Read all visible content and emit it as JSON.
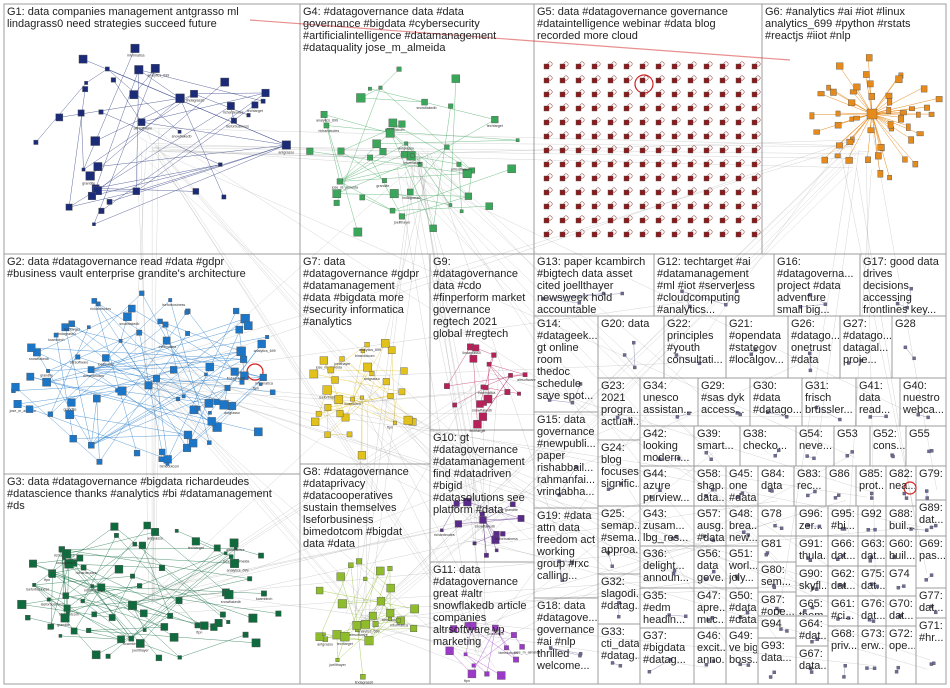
{
  "colors": {
    "G1": "#1c2b78",
    "G2": "#1c76c8",
    "G3": "#0f6b3e",
    "G4": "#3aa65a",
    "G5": "#8c1a1a",
    "G6": "#e68a1c",
    "G7": "#e2c21a",
    "G8": "#8fbc2a",
    "G9": "#b8205a",
    "G10": "#5a2a8a",
    "G11": "#9c3ac8",
    "small": "#6b6b9c",
    "edge": "#8a8a8a",
    "highlight": "#d42020"
  },
  "groups": [
    {
      "id": "g1",
      "lines": [
        "G1: data companies management antgrasso ml",
        "lindagrass0 need strategies succeed future"
      ],
      "color": "G1",
      "layout": "cluster",
      "nodes": 40
    },
    {
      "id": "g2",
      "lines": [
        "G2: data #datagovernance read #data #gdpr",
        "#business vault enterprise grandite's architecture"
      ],
      "color": "G2",
      "layout": "cluster",
      "nodes": 80
    },
    {
      "id": "g3",
      "lines": [
        "G3: data #datagovernance #bigdata richardeudes",
        "#datascience thanks #analytics #bi #datamanagement",
        "#ds"
      ],
      "color": "G3",
      "layout": "cluster",
      "nodes": 75
    },
    {
      "id": "g4",
      "lines": [
        "G4: #datagovernance data #data",
        "governance #bigdata #cybersecurity",
        "#artificialintelligence #datamanagement",
        "#dataquality jose_m_almeida"
      ],
      "color": "G4",
      "layout": "cluster",
      "nodes": 45
    },
    {
      "id": "g5",
      "lines": [
        "G5: data #datagovernance governance",
        "#dataintelligence webinar #data blog",
        "recorded more cloud"
      ],
      "color": "G5",
      "layout": "grid",
      "nodes": 0
    },
    {
      "id": "g6",
      "lines": [
        "G6: #analytics #ai #iot #linux",
        "analytics_699 #python #rstats",
        "#reactjs #iiot #nlp"
      ],
      "color": "G6",
      "layout": "star",
      "nodes": 50
    },
    {
      "id": "g7",
      "lines": [
        "G7: data",
        "#datagovernance #gdpr",
        "#datamanagement",
        "#data #bigdata more",
        "#security informatica",
        "#analytics"
      ],
      "color": "G7",
      "layout": "cluster",
      "nodes": 30
    },
    {
      "id": "g8",
      "lines": [
        "G8: #datagovernance",
        "#dataprivacy",
        "#datacooperatives",
        "sustain themselves",
        "lseforbusiness",
        "bimedotcom #bigdat",
        "data #data"
      ],
      "color": "G8",
      "layout": "cluster",
      "nodes": 30
    },
    {
      "id": "g9",
      "lines": [
        "G9:",
        "#datagovernance",
        "data #cdo",
        "#finperform market",
        "governance",
        "regtech 2021",
        "global #regtech"
      ],
      "color": "G9",
      "layout": "cluster",
      "nodes": 18
    },
    {
      "id": "g10",
      "lines": [
        "G10: gt",
        "#datagovernance",
        "#datamanagement",
        "find #datadriven",
        "#bigid",
        "#datasolutions see",
        "platform #data"
      ],
      "color": "G10",
      "layout": "cluster",
      "nodes": 14
    },
    {
      "id": "g11",
      "lines": [
        "G11: data",
        "#datagovernance",
        "great #altr",
        "snowflakedb article",
        "companies",
        "altrsoftware vp",
        "marketing"
      ],
      "color": "G11",
      "layout": "cluster",
      "nodes": 14
    },
    {
      "id": "g12",
      "lines": [
        "G12: techtarget #ai",
        "#datamanagement",
        "#ml #iot #serverless",
        "#cloudcomputing",
        "#analytics..."
      ],
      "color": "small",
      "layout": "few",
      "nodes": 4
    },
    {
      "id": "g13",
      "lines": [
        "G13: paper kcambirch",
        "#bigtech data asset",
        "cited joellthayer",
        "newsweek hold",
        "accountable"
      ],
      "color": "small",
      "layout": "few",
      "nodes": 4
    },
    {
      "id": "g14",
      "lines": [
        "G14:",
        "#datageek...",
        "gt online",
        "room",
        "thedoc",
        "schedule",
        "save spot..."
      ],
      "color": "small",
      "layout": "few",
      "nodes": 3
    },
    {
      "id": "g15",
      "lines": [
        "G15: data",
        "governance",
        "#newpubli...",
        "paper",
        "rishabbail...",
        "rahmanfai...",
        "vrindabha..."
      ],
      "color": "small",
      "layout": "few",
      "nodes": 3
    },
    {
      "id": "g16",
      "lines": [
        "G16:",
        "#datagoverna...",
        "project #data",
        "adventure",
        "small big..."
      ],
      "color": "small",
      "layout": "few",
      "nodes": 3
    },
    {
      "id": "g17",
      "lines": [
        "G17: good data",
        "drives",
        "decisions",
        "accessing",
        "frontlines key..."
      ],
      "color": "small",
      "layout": "few",
      "nodes": 3
    },
    {
      "id": "g18",
      "lines": [
        "G18: data",
        "#datagove...",
        "governance",
        "#ai #nlp",
        "thrilled",
        "welcome..."
      ],
      "color": "small",
      "layout": "few",
      "nodes": 3
    },
    {
      "id": "g19",
      "lines": [
        "G19: #data",
        "attn data",
        "freedom act",
        "working",
        "group #rxc",
        "calling..."
      ],
      "color": "small",
      "layout": "few",
      "nodes": 3
    },
    {
      "id": "g20",
      "lines": [
        "G20: data"
      ],
      "color": "small",
      "layout": "few",
      "nodes": 3
    },
    {
      "id": "g21",
      "lines": [
        "G21:",
        "#opendata",
        "#stategov",
        "#localgov..."
      ],
      "color": "small",
      "layout": "few",
      "nodes": 2
    },
    {
      "id": "g22",
      "lines": [
        "G22:",
        "principles",
        "#youth",
        "consultati..."
      ],
      "color": "small",
      "layout": "few",
      "nodes": 2
    },
    {
      "id": "g23",
      "lines": [
        "G23:",
        "2021",
        "progra...",
        "actuali..."
      ],
      "color": "small",
      "layout": "few",
      "nodes": 2
    },
    {
      "id": "g24",
      "lines": [
        "G24:",
        "blog",
        "focuses",
        "signific..."
      ],
      "color": "small",
      "layout": "few",
      "nodes": 2
    },
    {
      "id": "g25",
      "lines": [
        "G25:",
        "semap...",
        "#sema...",
        "approa..."
      ],
      "color": "small",
      "layout": "few",
      "nodes": 2
    },
    {
      "id": "g26",
      "lines": [
        "G26:",
        "#datago...",
        "onetrust",
        "#data"
      ],
      "color": "small",
      "layout": "few",
      "nodes": 2
    },
    {
      "id": "g27",
      "lines": [
        "G27:",
        "#datago...",
        "datagal...",
        "proje..."
      ],
      "color": "small",
      "layout": "few",
      "nodes": 2
    },
    {
      "id": "g28",
      "lines": [
        "G28"
      ],
      "color": "small",
      "layout": "few",
      "nodes": 2
    },
    {
      "id": "g29",
      "lines": [
        "G29:",
        "#sas dyk",
        "access..."
      ],
      "color": "small",
      "layout": "few",
      "nodes": 2
    },
    {
      "id": "g30",
      "lines": [
        "G30:",
        "#data",
        "#datago..."
      ],
      "color": "small",
      "layout": "few",
      "nodes": 2
    },
    {
      "id": "g31",
      "lines": [
        "G31:",
        "frisch",
        "brüssler..."
      ],
      "color": "small",
      "layout": "few",
      "nodes": 2
    },
    {
      "id": "g32",
      "lines": [
        "G32:",
        "slagodi...",
        "#datag..."
      ],
      "color": "small",
      "layout": "few",
      "nodes": 2
    },
    {
      "id": "g33",
      "lines": [
        "G33:",
        "cti_data",
        "#datag..."
      ],
      "color": "small",
      "layout": "few",
      "nodes": 2
    },
    {
      "id": "g34",
      "lines": [
        "G34:",
        "unesco",
        "assistan..."
      ],
      "color": "small",
      "layout": "few",
      "nodes": 2
    },
    {
      "id": "g35",
      "lines": [
        "G35:",
        "#edm",
        "headin..."
      ],
      "color": "small",
      "layout": "few",
      "nodes": 2
    },
    {
      "id": "g36",
      "lines": [
        "G36:",
        "delight...",
        "announ..."
      ],
      "color": "small",
      "layout": "few",
      "nodes": 2
    },
    {
      "id": "g37",
      "lines": [
        "G37:",
        "#bigdata",
        "#datag..."
      ],
      "color": "small",
      "layout": "few",
      "nodes": 2
    },
    {
      "id": "g38",
      "lines": [
        "G38:",
        "checko..."
      ],
      "color": "small",
      "layout": "few",
      "nodes": 2
    },
    {
      "id": "g39",
      "lines": [
        "G39:",
        "smart..."
      ],
      "color": "small",
      "layout": "few",
      "nodes": 2
    },
    {
      "id": "g40",
      "lines": [
        "G40:",
        "nuestro",
        "webca..."
      ],
      "color": "small",
      "layout": "few",
      "nodes": 2
    },
    {
      "id": "g41",
      "lines": [
        "G41:",
        "data",
        "read..."
      ],
      "color": "small",
      "layout": "few",
      "nodes": 2
    },
    {
      "id": "g42",
      "lines": [
        "G42:",
        "looking",
        "modern..."
      ],
      "color": "small",
      "layout": "few",
      "nodes": 2
    },
    {
      "id": "g43",
      "lines": [
        "G43:",
        "zusam...",
        "lbg_res..."
      ],
      "color": "small",
      "layout": "few",
      "nodes": 2
    },
    {
      "id": "g44",
      "lines": [
        "G44:",
        "azure",
        "purview..."
      ],
      "color": "small",
      "layout": "few",
      "nodes": 2
    },
    {
      "id": "g45",
      "lines": [
        "G45:",
        "one",
        "#data"
      ],
      "color": "small",
      "layout": "few",
      "nodes": 2
    },
    {
      "id": "g46",
      "lines": [
        "G46:",
        "excit...",
        "anno..."
      ],
      "color": "small",
      "layout": "few",
      "nodes": 2
    },
    {
      "id": "g47",
      "lines": [
        "G47:",
        "apre...",
        "muc..."
      ],
      "color": "small",
      "layout": "few",
      "nodes": 2
    },
    {
      "id": "g48",
      "lines": [
        "G48:",
        "brea...",
        "new..."
      ],
      "color": "small",
      "layout": "few",
      "nodes": 2
    },
    {
      "id": "g49",
      "lines": [
        "G49:",
        "ve big",
        "boss..."
      ],
      "color": "small",
      "layout": "few",
      "nodes": 2
    },
    {
      "id": "g50",
      "lines": [
        "G50:",
        "#data",
        "#data..."
      ],
      "color": "small",
      "layout": "few",
      "nodes": 2
    },
    {
      "id": "g51",
      "lines": [
        "G51:",
        "worl...",
        "joly..."
      ],
      "color": "small",
      "layout": "few",
      "nodes": 2
    },
    {
      "id": "g52",
      "lines": [
        "G52:",
        "cons..."
      ],
      "color": "small",
      "layout": "few",
      "nodes": 2
    },
    {
      "id": "g53",
      "lines": [
        "G53"
      ],
      "color": "small",
      "layout": "few",
      "nodes": 2
    },
    {
      "id": "g54",
      "lines": [
        "G54:",
        "neve..."
      ],
      "color": "small",
      "layout": "few",
      "nodes": 2
    },
    {
      "id": "g55",
      "lines": [
        "G55"
      ],
      "color": "small",
      "layout": "few",
      "nodes": 2
    },
    {
      "id": "g56",
      "lines": [
        "G56:",
        "data",
        "gove..."
      ],
      "color": "small",
      "layout": "few",
      "nodes": 2
    },
    {
      "id": "g57",
      "lines": [
        "G57:",
        "ausg...",
        "#data..."
      ],
      "color": "small",
      "layout": "few",
      "nodes": 2
    },
    {
      "id": "g58",
      "lines": [
        "G58:",
        "shap...",
        "data..."
      ],
      "color": "small",
      "layout": "few",
      "nodes": 2
    },
    {
      "id": "g60",
      "lines": [
        "G60:",
        "buil..."
      ],
      "color": "small",
      "layout": "few",
      "nodes": 2
    },
    {
      "id": "g61",
      "lines": [
        "G61:",
        "#ci..."
      ],
      "color": "small",
      "layout": "few",
      "nodes": 2
    },
    {
      "id": "g62",
      "lines": [
        "G62:",
        "dat..."
      ],
      "color": "small",
      "layout": "few",
      "nodes": 2
    },
    {
      "id": "g63",
      "lines": [
        "G63:",
        "dat..."
      ],
      "color": "small",
      "layout": "few",
      "nodes": 2
    },
    {
      "id": "g64",
      "lines": [
        "G64:",
        "#dat..."
      ],
      "color": "small",
      "layout": "few",
      "nodes": 2
    },
    {
      "id": "g65",
      "lines": [
        "G65:",
        "them..."
      ],
      "color": "small",
      "layout": "few",
      "nodes": 2
    },
    {
      "id": "g66",
      "lines": [
        "G66:",
        "dat..."
      ],
      "color": "small",
      "layout": "few",
      "nodes": 2
    },
    {
      "id": "g67",
      "lines": [
        "G67:",
        "data..."
      ],
      "color": "small",
      "layout": "few",
      "nodes": 2
    },
    {
      "id": "g68",
      "lines": [
        "G68:",
        "priv..."
      ],
      "color": "small",
      "layout": "few",
      "nodes": 2
    },
    {
      "id": "g69",
      "lines": [
        "G69:",
        "pas..."
      ],
      "color": "small",
      "layout": "few",
      "nodes": 2
    },
    {
      "id": "g70",
      "lines": [
        "G70:",
        "dat..."
      ],
      "color": "small",
      "layout": "few",
      "nodes": 2
    },
    {
      "id": "g71",
      "lines": [
        "G71:",
        "#hr..."
      ],
      "color": "small",
      "layout": "few",
      "nodes": 2
    },
    {
      "id": "g72",
      "lines": [
        "G72:",
        "ope..."
      ],
      "color": "small",
      "layout": "few",
      "nodes": 2
    },
    {
      "id": "g73",
      "lines": [
        "G73:",
        "erw..."
      ],
      "color": "small",
      "layout": "few",
      "nodes": 2
    },
    {
      "id": "g74",
      "lines": [
        "G74"
      ],
      "color": "small",
      "layout": "few",
      "nodes": 2
    },
    {
      "id": "g75",
      "lines": [
        "G75:",
        "dat..."
      ],
      "color": "small",
      "layout": "few",
      "nodes": 2
    },
    {
      "id": "g76",
      "lines": [
        "G76:",
        "dat..."
      ],
      "color": "small",
      "layout": "few",
      "nodes": 2
    },
    {
      "id": "g77",
      "lines": [
        "G77:",
        "dat..."
      ],
      "color": "small",
      "layout": "few",
      "nodes": 2
    },
    {
      "id": "g78",
      "lines": [
        "G78"
      ],
      "color": "small",
      "layout": "few",
      "nodes": 2
    },
    {
      "id": "g79",
      "lines": [
        "G79:"
      ],
      "color": "small",
      "layout": "few",
      "nodes": 2
    },
    {
      "id": "g80",
      "lines": [
        "G80:",
        "sem..."
      ],
      "color": "small",
      "layout": "few",
      "nodes": 2
    },
    {
      "id": "g81",
      "lines": [
        "G81"
      ],
      "color": "small",
      "layout": "few",
      "nodes": 2
    },
    {
      "id": "g82",
      "lines": [
        "G82:",
        "nea..."
      ],
      "color": "small",
      "layout": "few",
      "nodes": 2
    },
    {
      "id": "g83",
      "lines": [
        "G83:",
        "rec..."
      ],
      "color": "small",
      "layout": "few",
      "nodes": 2
    },
    {
      "id": "g84",
      "lines": [
        "G84:",
        "data"
      ],
      "color": "small",
      "layout": "few",
      "nodes": 2
    },
    {
      "id": "g85",
      "lines": [
        "G85:",
        "prot..."
      ],
      "color": "small",
      "layout": "few",
      "nodes": 2
    },
    {
      "id": "g86",
      "lines": [
        "G86"
      ],
      "color": "small",
      "layout": "few",
      "nodes": 2
    },
    {
      "id": "g87",
      "lines": [
        "G87:",
        "#ope..."
      ],
      "color": "small",
      "layout": "few",
      "nodes": 2
    },
    {
      "id": "g88",
      "lines": [
        "G88:",
        "buil..."
      ],
      "color": "small",
      "layout": "few",
      "nodes": 2
    },
    {
      "id": "g89",
      "lines": [
        "G89:",
        "dat..."
      ],
      "color": "small",
      "layout": "few",
      "nodes": 2
    },
    {
      "id": "g90",
      "lines": [
        "G90:",
        "skyfl..."
      ],
      "color": "small",
      "layout": "few",
      "nodes": 2
    },
    {
      "id": "g91",
      "lines": [
        "G91:",
        "thula..."
      ],
      "color": "small",
      "layout": "few",
      "nodes": 2
    },
    {
      "id": "g92",
      "lines": [
        "G92"
      ],
      "color": "small",
      "layout": "few",
      "nodes": 2
    },
    {
      "id": "g93",
      "lines": [
        "G93:",
        "data..."
      ],
      "color": "small",
      "layout": "few",
      "nodes": 2
    },
    {
      "id": "g94",
      "lines": [
        "G94"
      ],
      "color": "small",
      "layout": "few",
      "nodes": 2
    },
    {
      "id": "g95",
      "lines": [
        "G95:",
        "#bi..."
      ],
      "color": "small",
      "layout": "few",
      "nodes": 2
    },
    {
      "id": "g96",
      "lines": [
        "G96:",
        "zer..."
      ],
      "color": "small",
      "layout": "few",
      "nodes": 2
    }
  ],
  "node_labels": [
    "antgrasso",
    "lindagrass0",
    "richardeudes",
    "jose_m_almeida",
    "analytics_699",
    "informatica",
    "lseforbusiness",
    "bimedotcom",
    "altrsoftware",
    "snowflakedb",
    "kcambirch",
    "joellthayer",
    "techtarget",
    "grandite",
    "ftpn"
  ]
}
